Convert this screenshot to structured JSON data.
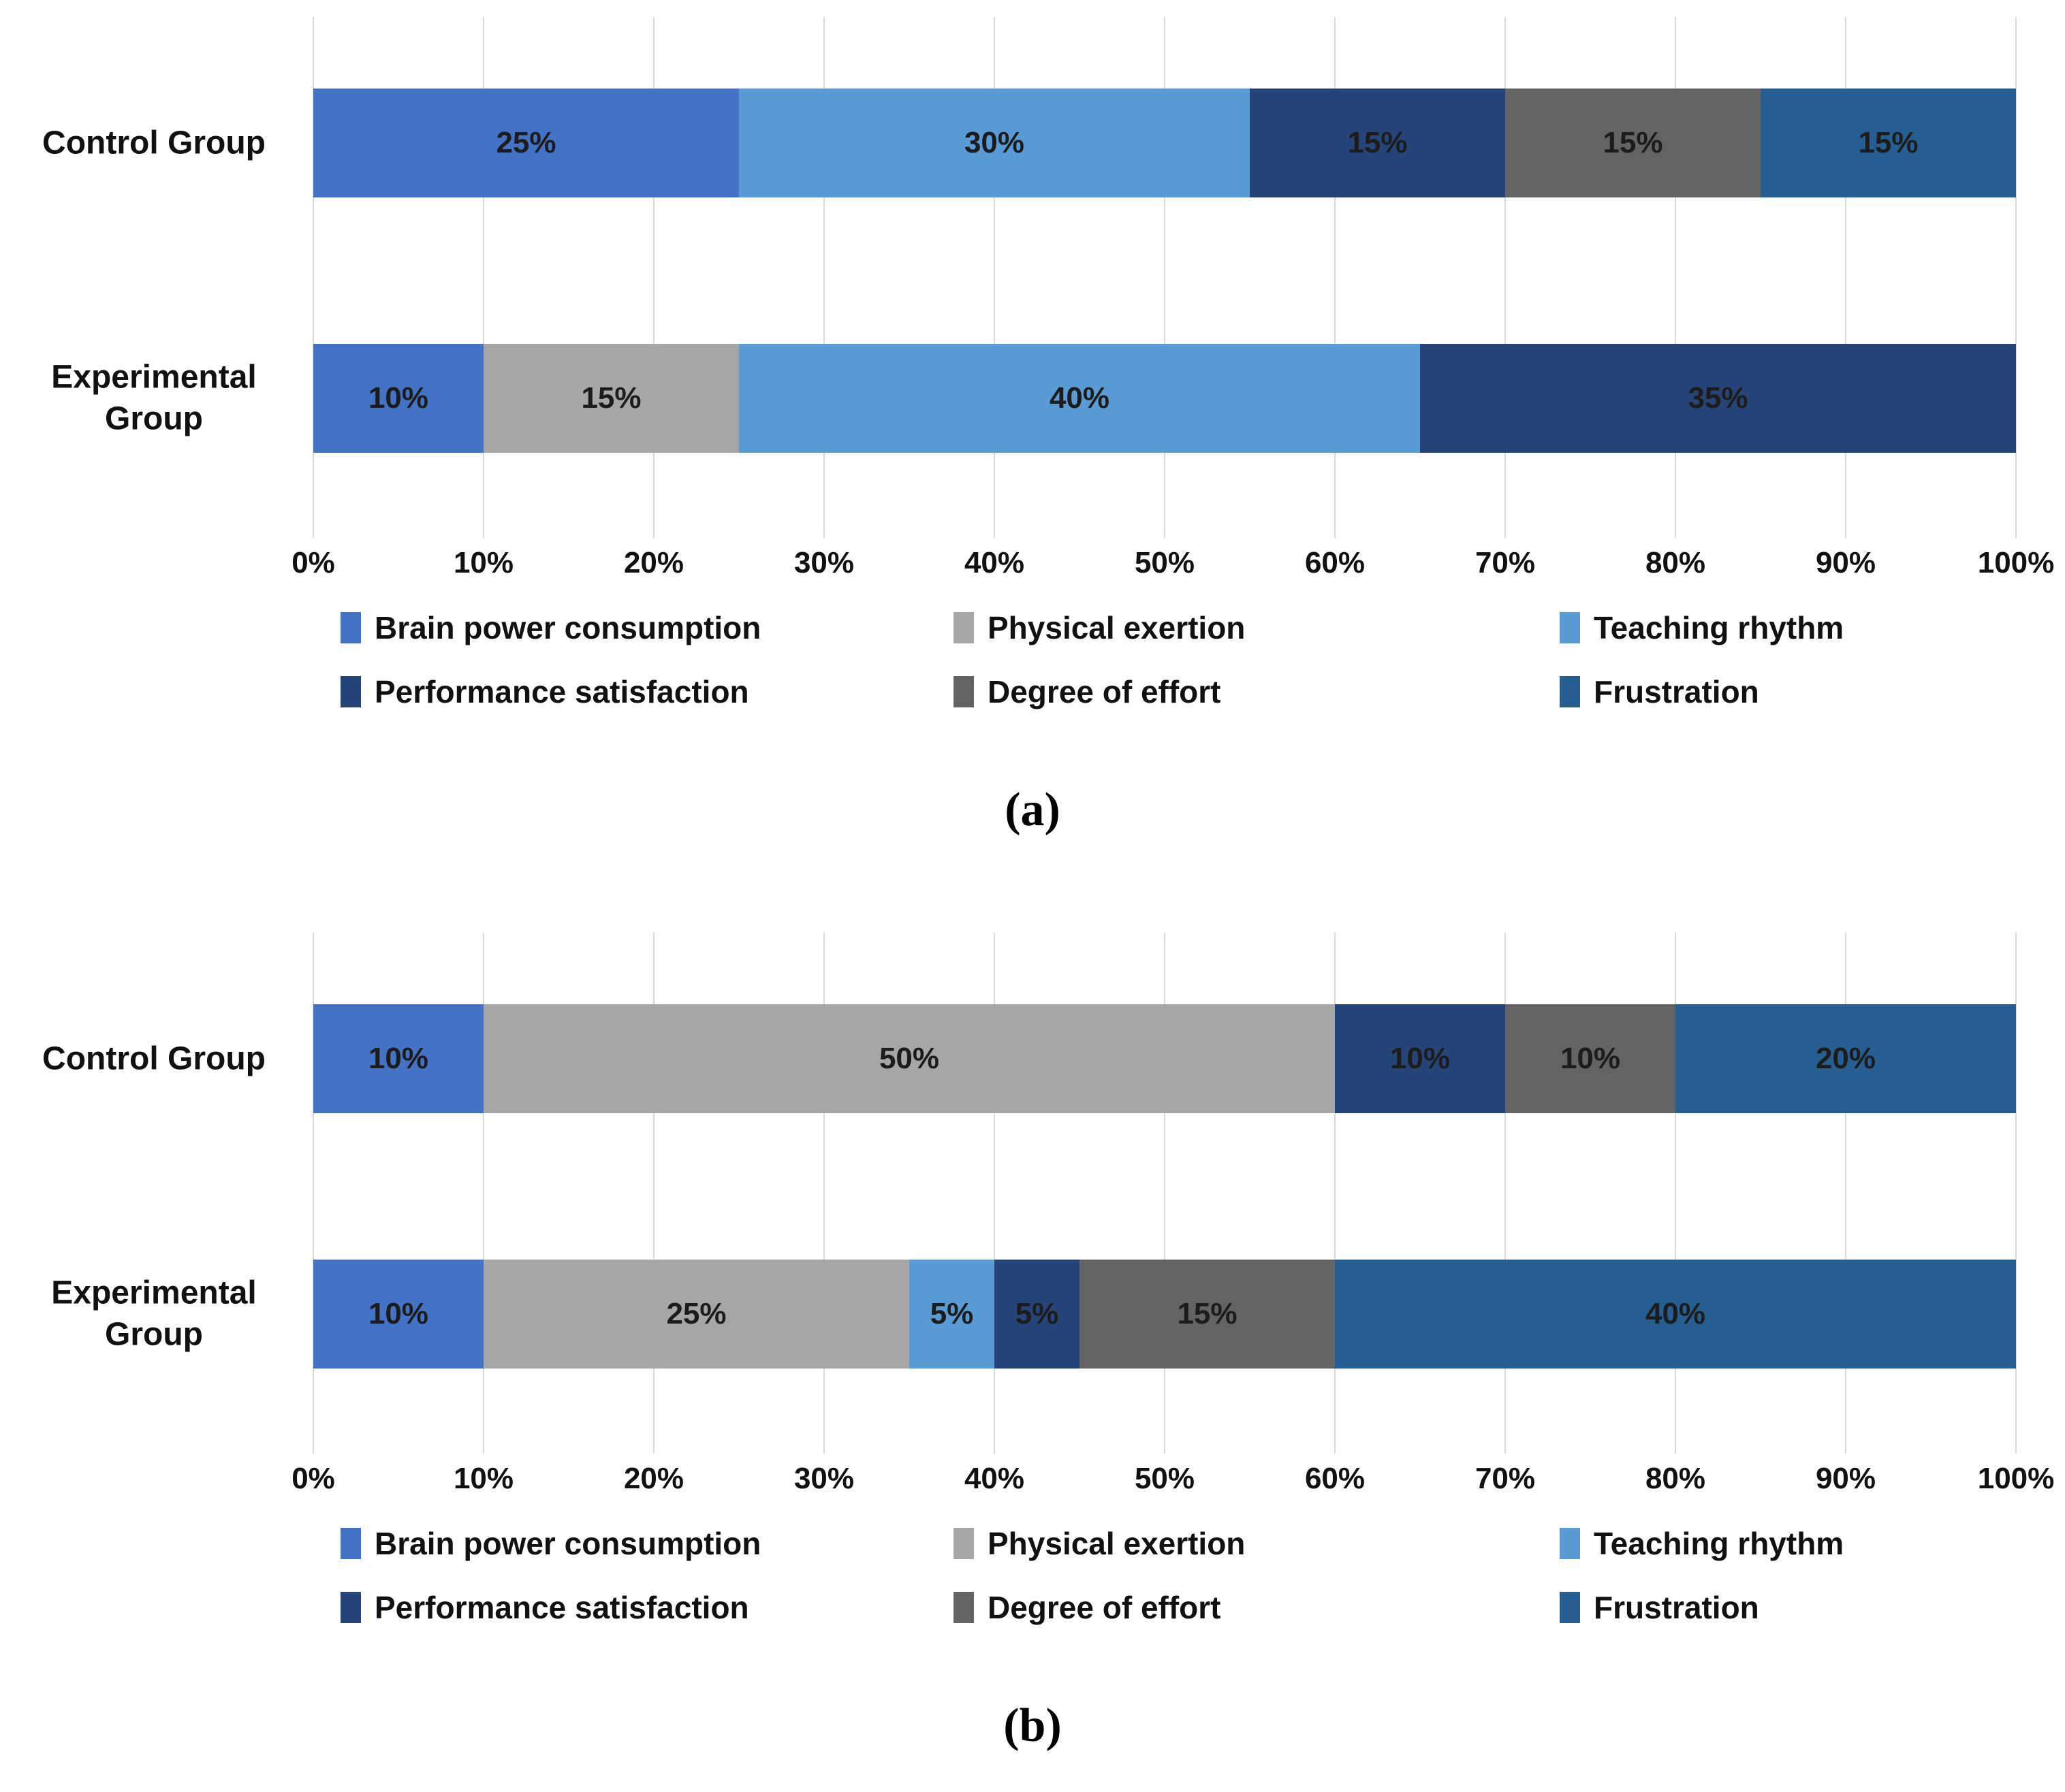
{
  "page": {
    "background": "#ffffff"
  },
  "chart_data": [
    {
      "type": "bar",
      "orientation": "horizontal",
      "stacked": true,
      "caption": "(a)",
      "categories": [
        "Control Group",
        "Experimental Group"
      ],
      "series": [
        {
          "name": "Brain power consumption",
          "color": "#4472C4",
          "values": [
            25,
            10
          ]
        },
        {
          "name": "Physical exertion",
          "color": "#A6A6A6",
          "values": [
            0,
            15
          ]
        },
        {
          "name": "Teaching rhythm",
          "color": "#5B9BD5",
          "values": [
            30,
            40
          ]
        },
        {
          "name": "Performance satisfaction",
          "color": "#264478",
          "values": [
            15,
            35
          ]
        },
        {
          "name": "Degree of effort",
          "color": "#636363",
          "values": [
            15,
            0
          ]
        },
        {
          "name": "Frustration",
          "color": "#265E91",
          "values": [
            15,
            0
          ]
        }
      ],
      "x_ticks": [
        "0%",
        "10%",
        "20%",
        "30%",
        "40%",
        "50%",
        "60%",
        "70%",
        "80%",
        "90%",
        "100%"
      ],
      "xlim": [
        0,
        100
      ],
      "grid": true,
      "legend_position": "bottom",
      "data_label_suffix": "%"
    },
    {
      "type": "bar",
      "orientation": "horizontal",
      "stacked": true,
      "caption": "(b)",
      "categories": [
        "Control Group",
        "Experimental Group"
      ],
      "series": [
        {
          "name": "Brain power consumption",
          "color": "#4472C4",
          "values": [
            10,
            10
          ]
        },
        {
          "name": "Physical exertion",
          "color": "#A6A6A6",
          "values": [
            50,
            25
          ]
        },
        {
          "name": "Teaching rhythm",
          "color": "#5B9BD5",
          "values": [
            0,
            5
          ]
        },
        {
          "name": "Performance satisfaction",
          "color": "#264478",
          "values": [
            10,
            5
          ]
        },
        {
          "name": "Degree of effort",
          "color": "#636363",
          "values": [
            10,
            15
          ]
        },
        {
          "name": "Frustration",
          "color": "#265E91",
          "values": [
            20,
            40
          ]
        }
      ],
      "x_ticks": [
        "0%",
        "10%",
        "20%",
        "30%",
        "40%",
        "50%",
        "60%",
        "70%",
        "80%",
        "90%",
        "100%"
      ],
      "xlim": [
        0,
        100
      ],
      "grid": true,
      "legend_position": "bottom",
      "data_label_suffix": "%"
    }
  ]
}
